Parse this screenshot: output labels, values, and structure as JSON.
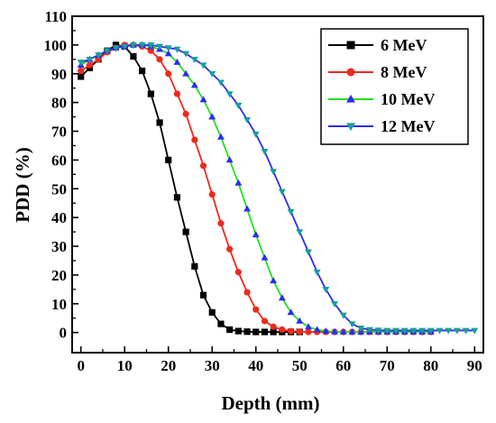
{
  "chart_data": {
    "type": "line",
    "title": "",
    "xlabel": "Depth (mm)",
    "ylabel": "PDD (%)",
    "xlim": [
      -2,
      92
    ],
    "ylim": [
      -7,
      110
    ],
    "x_ticks": [
      0,
      10,
      20,
      30,
      40,
      50,
      60,
      70,
      80,
      90
    ],
    "y_ticks": [
      0,
      10,
      20,
      30,
      40,
      50,
      60,
      70,
      80,
      90,
      100,
      110
    ],
    "grid": false,
    "legend_position": "top-right",
    "series": [
      {
        "name": "6 MeV",
        "color": "#000000",
        "marker": "square",
        "x": [
          0,
          2,
          4,
          6,
          8,
          10,
          12,
          14,
          16,
          18,
          20,
          22,
          24,
          26,
          28,
          30,
          32,
          34,
          36,
          38,
          40,
          42,
          44,
          46,
          48,
          50
        ],
        "y": [
          89,
          92,
          95,
          98,
          100,
          99.5,
          96,
          91,
          83,
          73,
          60,
          47,
          35,
          23,
          13,
          7,
          3,
          1,
          0.5,
          0.3,
          0.2,
          0.2,
          0.2,
          0.2,
          0.2,
          0.2
        ]
      },
      {
        "name": "8 MeV",
        "color": "#ee2a1c",
        "marker": "circle",
        "x": [
          0,
          2,
          4,
          6,
          8,
          10,
          12,
          14,
          16,
          18,
          20,
          22,
          24,
          26,
          28,
          30,
          32,
          34,
          36,
          38,
          40,
          42,
          44,
          46,
          48,
          50,
          52,
          54,
          56,
          58,
          60,
          62,
          64,
          66,
          68,
          70,
          72,
          74,
          76,
          78,
          80
        ],
        "y": [
          91,
          93,
          95,
          97.5,
          99,
          100,
          100,
          99.5,
          98,
          95,
          90,
          83,
          76,
          67,
          58,
          48,
          38,
          29,
          21,
          14,
          8,
          4,
          2,
          1,
          0.5,
          0.3,
          0.2,
          0.2,
          0.2,
          0.2,
          0.2,
          0.2,
          0.2,
          0.2,
          0.2,
          0.2,
          0.2,
          0.2,
          0.2,
          0.2,
          0.2
        ]
      },
      {
        "name": "10 MeV",
        "color": "#2c2cf0",
        "line_color": "#22e022",
        "marker": "triangle-up",
        "x": [
          0,
          2,
          4,
          6,
          8,
          10,
          12,
          14,
          16,
          18,
          20,
          22,
          24,
          26,
          28,
          30,
          32,
          34,
          36,
          38,
          40,
          42,
          44,
          46,
          48,
          50,
          52,
          54,
          56,
          58,
          60,
          62,
          64,
          66,
          68,
          70,
          72,
          74,
          76,
          78,
          80
        ],
        "y": [
          93,
          95,
          96.5,
          98,
          99,
          99.5,
          100,
          100,
          99.5,
          98.5,
          97,
          94,
          90,
          86,
          81,
          75,
          68,
          60,
          52,
          43,
          34,
          26,
          18,
          12,
          7,
          4,
          2,
          1,
          0.5,
          0.3,
          0.2,
          0.2,
          0.2,
          0.2,
          0.2,
          0.2,
          0.2,
          0.2,
          0.2,
          0.2,
          0.2
        ]
      },
      {
        "name": "12 MeV",
        "color": "#1a9e9a",
        "line_color": "#2c2cf0",
        "marker": "triangle-down",
        "x": [
          0,
          2,
          4,
          6,
          8,
          10,
          12,
          14,
          16,
          18,
          20,
          22,
          24,
          26,
          28,
          30,
          32,
          34,
          36,
          38,
          40,
          42,
          44,
          46,
          48,
          50,
          52,
          54,
          56,
          58,
          60,
          62,
          64,
          66,
          68,
          70,
          72,
          74,
          76,
          78,
          80,
          82,
          84,
          86,
          88,
          90
        ],
        "y": [
          94,
          95,
          96.5,
          98,
          99,
          99.5,
          100,
          100,
          100,
          99.5,
          99,
          98.5,
          97,
          95,
          93,
          90,
          87,
          83,
          79,
          74,
          69,
          63,
          56,
          49,
          42,
          35,
          28,
          21,
          15,
          10,
          6,
          3,
          1.5,
          1,
          0.8,
          0.7,
          0.7,
          0.7,
          0.7,
          0.7,
          0.7,
          0.7,
          0.7,
          0.7,
          0.7,
          0.7
        ]
      }
    ]
  }
}
